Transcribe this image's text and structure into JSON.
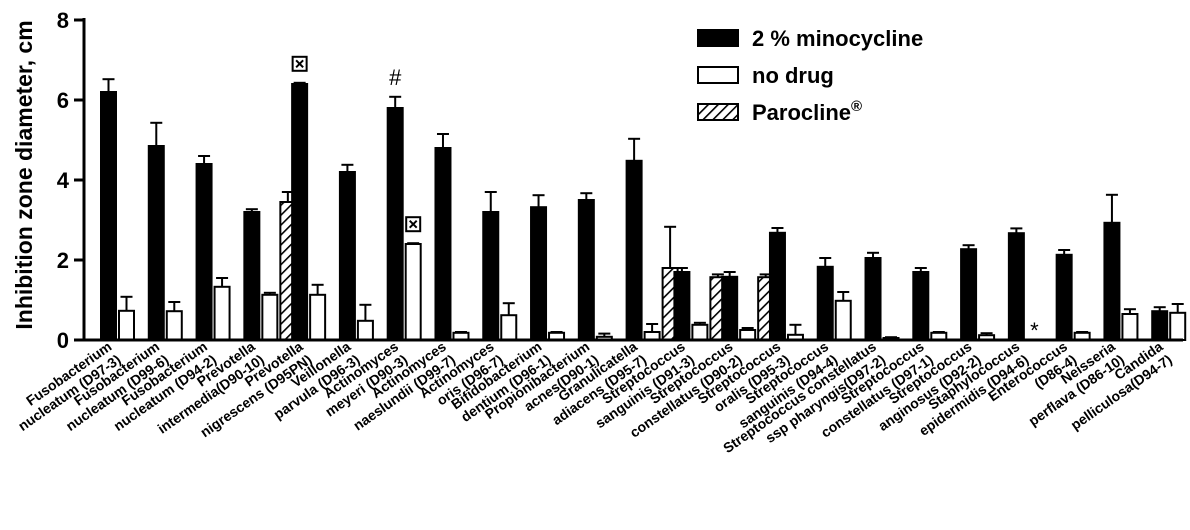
{
  "chart_data": {
    "type": "bar",
    "ylabel": "Inhibition zone diameter, cm",
    "ylim": [
      0,
      8
    ],
    "yticks": [
      "0",
      "2",
      "4",
      "6",
      "8"
    ],
    "legend_position": "top-right",
    "categories": [
      [
        "Fusobacterium",
        "nucleatum (D97-3)"
      ],
      [
        "Fusobacterium",
        "nucleatum (D99-6)"
      ],
      [
        "Fusobacterium",
        "nucleatum (D94-2)"
      ],
      [
        "Prevotella",
        "intermedia(D90-10)"
      ],
      [
        "Prevotella",
        "nigrescens (D95PN)"
      ],
      [
        "Veillonella",
        "parvula (D96-3)"
      ],
      [
        "Actinomyces",
        "meyeri (D90-3)"
      ],
      [
        "Actinomyces",
        "naeslundii (D99-7)"
      ],
      [
        "Actinomyces",
        "oris (D96-7)"
      ],
      [
        "Bifidobacterium",
        "dentium (D96-1)"
      ],
      [
        "Propionibacterium",
        "acnes(D90-1)"
      ],
      [
        "Granulicatella",
        "adiacens (D95-7)"
      ],
      [
        "Streptococcus",
        "sanguinis (D91-3)"
      ],
      [
        "Streptococcus",
        "constellatus (D90-2)"
      ],
      [
        "Streptococcus",
        "oralis (D95-3)"
      ],
      [
        "Streptococcus",
        "sanguinis (D94-4)"
      ],
      [
        "Streptococcus constellatus",
        "ssp pharyngis(D97-2)"
      ],
      [
        "Streptococcus",
        "constellatus (D97-1)"
      ],
      [
        "Streptococcus",
        "anginosus (D92-2)"
      ],
      [
        "Staphylococcus",
        "epidermidis (D94-6)"
      ],
      [
        "Enterococcus",
        "(D86-4)"
      ],
      [
        "Neisseria",
        "perflava (D86-10)"
      ],
      [
        "Candida",
        "pelliculosa(D94-7)"
      ]
    ],
    "series": [
      {
        "name": "2 % minocycline",
        "color": "#000000",
        "pattern": "solid",
        "values": [
          6.2,
          4.85,
          4.4,
          3.2,
          6.4,
          4.2,
          5.8,
          4.8,
          3.2,
          3.32,
          3.5,
          4.48,
          1.7,
          1.58,
          2.68,
          1.83,
          2.05,
          1.7,
          2.27,
          2.67,
          2.13,
          2.93,
          0.72
        ],
        "errors": [
          0.32,
          0.58,
          0.2,
          0.07,
          0.03,
          0.18,
          0.28,
          0.35,
          0.5,
          0.3,
          0.17,
          0.55,
          0.1,
          0.12,
          0.12,
          0.22,
          0.13,
          0.1,
          0.1,
          0.12,
          0.12,
          0.7,
          0.1
        ]
      },
      {
        "name": "no drug",
        "color": "#ffffff",
        "pattern": "open",
        "values": [
          0.73,
          0.72,
          1.33,
          1.13,
          1.13,
          0.48,
          2.4,
          0.18,
          0.62,
          0.18,
          0.08,
          0.2,
          0.38,
          0.25,
          0.13,
          0.98,
          0.05,
          0.18,
          0.12,
          0,
          0.18,
          0.65,
          0.68
        ],
        "errors": [
          0.35,
          0.23,
          0.22,
          0.05,
          0.25,
          0.4,
          0.02,
          0.02,
          0.3,
          0.02,
          0.08,
          0.2,
          0.05,
          0.05,
          0.25,
          0.22,
          0.02,
          0.02,
          0.05,
          0,
          0.02,
          0.12,
          0.22
        ]
      },
      {
        "name": "Parocline®",
        "color": "#000000",
        "pattern": "hatched",
        "categories_present": [
          3,
          11,
          12,
          13
        ],
        "values": [
          null,
          null,
          null,
          3.45,
          null,
          null,
          null,
          null,
          null,
          null,
          null,
          1.8,
          1.57,
          1.57,
          null,
          null,
          null,
          null,
          null,
          null,
          null,
          null,
          null
        ],
        "errors": [
          null,
          null,
          null,
          0.25,
          null,
          null,
          null,
          null,
          null,
          null,
          null,
          1.03,
          0.07,
          0.07,
          null,
          null,
          null,
          null,
          null,
          null,
          null,
          null,
          null
        ]
      }
    ],
    "legend": [
      {
        "label": "2 % minocycline",
        "pattern": "solid"
      },
      {
        "label": "no drug",
        "pattern": "open"
      },
      {
        "label": "Parocline",
        "superscript": "®",
        "pattern": "hatched"
      }
    ],
    "annotations": [
      {
        "text": "#",
        "category": 6,
        "series": "2 % minocycline"
      },
      {
        "text": "⊠",
        "category": 4,
        "series": "2 % minocycline",
        "symbol": "boxed-x"
      },
      {
        "text": "⊠",
        "category": 6,
        "series": "no drug",
        "symbol": "boxed-x"
      },
      {
        "text": "*",
        "category": 19,
        "series": "no drug"
      }
    ]
  }
}
